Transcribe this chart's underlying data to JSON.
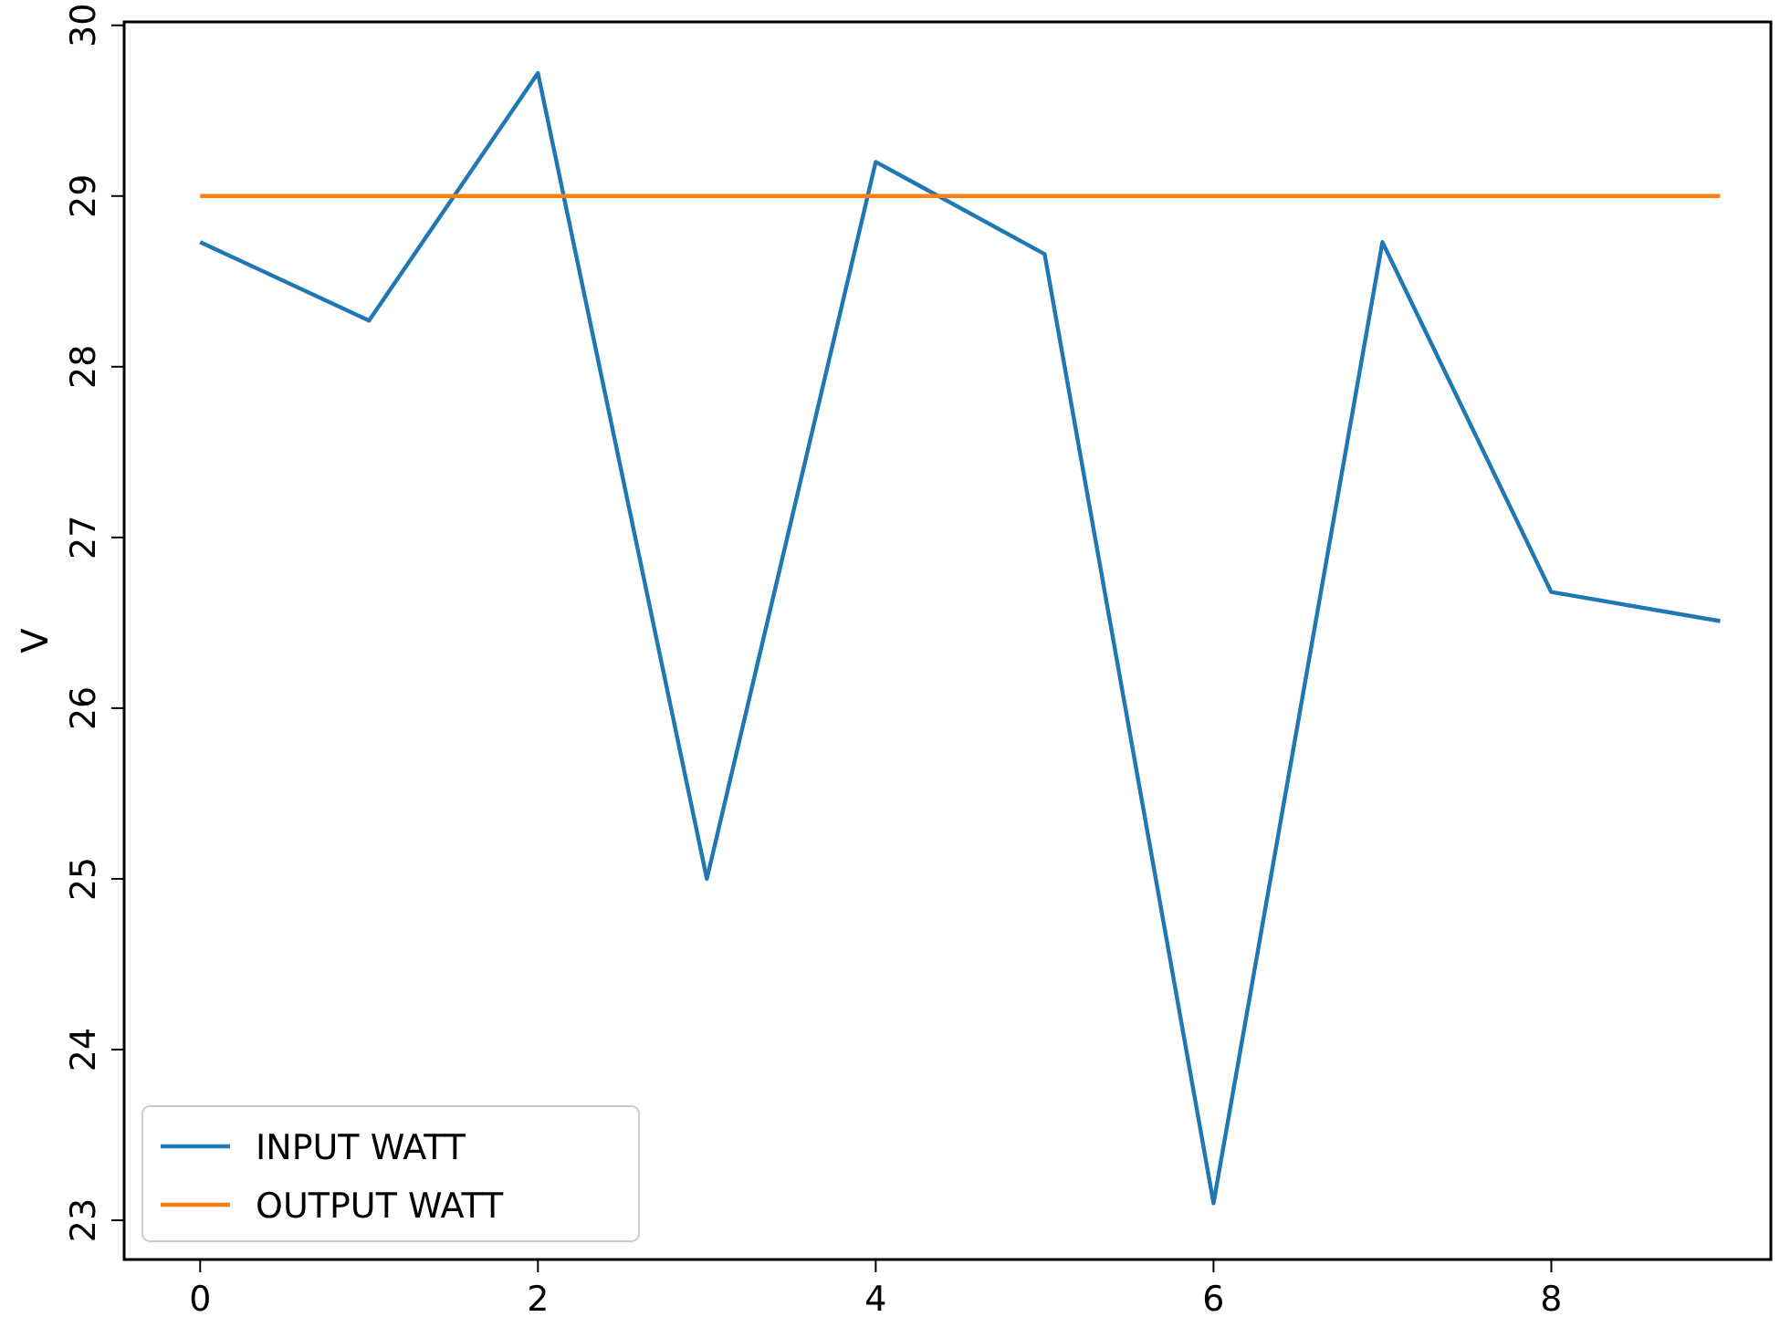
{
  "chart_data": {
    "type": "line",
    "ylabel": "V",
    "x": [
      0,
      1,
      2,
      3,
      4,
      5,
      6,
      7,
      8,
      9
    ],
    "series": [
      {
        "name": "INPUT WATT",
        "color": "#1f77b4",
        "values": [
          28.73,
          28.27,
          29.72,
          25.0,
          29.2,
          28.66,
          23.1,
          28.73,
          26.68,
          26.51
        ]
      },
      {
        "name": "OUTPUT WATT",
        "color": "#ff7f0e",
        "values": [
          29,
          29,
          29,
          29,
          29,
          29,
          29,
          29,
          29,
          29
        ]
      }
    ],
    "xlim": [
      -0.45,
      9.3
    ],
    "xticks": [
      0,
      2,
      4,
      6,
      8
    ],
    "ylim": [
      22.77,
      30.02
    ],
    "yticks": [
      23,
      24,
      25,
      26,
      27,
      28,
      29,
      30
    ],
    "legend": "bottom left",
    "grid": false,
    "marker": "none",
    "line_style": "solid"
  }
}
